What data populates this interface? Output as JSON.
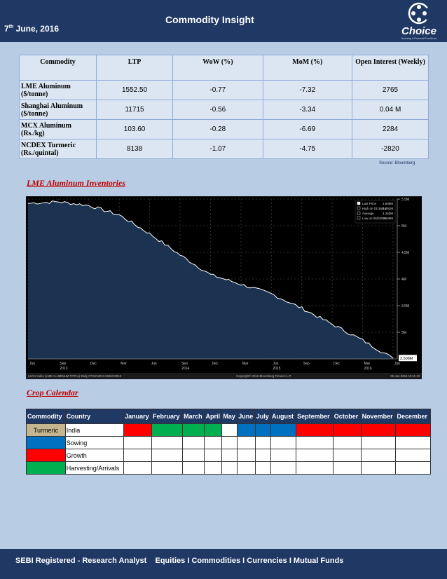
{
  "header": {
    "date_day": "7",
    "date_suffix": "th",
    "date_rest": " June, 2016",
    "title": "Commodity Insight",
    "logo_text": "Choice",
    "logo_tagline": "Nurturing & Financial Excellence"
  },
  "commodity_table": {
    "headers": [
      "Commodity",
      "LTP",
      "WoW (%)",
      "MoM (%)",
      "Open Interest (Weekly)"
    ],
    "rows": [
      {
        "name": "LME Aluminum ($/tonne)",
        "ltp": "1552.50",
        "wow": "-0.77",
        "mom": "-7.32",
        "oi": "2765"
      },
      {
        "name": "Shanghai Aluminum ($/tonne)",
        "ltp": "11715",
        "wow": "-0.56",
        "mom": "-3.34",
        "oi": "0.04 M"
      },
      {
        "name": "MCX Aluminum (Rs./kg)",
        "ltp": "103.60",
        "wow": "-0.28",
        "mom": "-6.69",
        "oi": "2284"
      },
      {
        "name": "NCDEX Turmeric (Rs./quintal)",
        "ltp": "8138",
        "wow": "-1.07",
        "mom": "-4.75",
        "oi": "-2820"
      }
    ],
    "source": "Source: Bloomberg"
  },
  "sections": {
    "inventories_title": "LME Aluminum Inventories",
    "crop_title": "Crop Calendar"
  },
  "chart_data": {
    "type": "area",
    "x": [
      "Jun 2013",
      "Sep 2013",
      "Dec 2013",
      "Mar 2014",
      "Jun 2014",
      "Sep 2014",
      "Dec 2014",
      "Mar 2015",
      "Jun 2015",
      "Sep 2015",
      "Dec 2015",
      "Mar 2016",
      "Jun 2016"
    ],
    "values": [
      5.42,
      5.45,
      5.38,
      5.2,
      4.85,
      4.45,
      4.08,
      3.9,
      3.72,
      3.45,
      3.15,
      2.85,
      2.51
    ],
    "ylim": [
      2.5,
      5.5
    ],
    "yticks": [
      "2.5M",
      "3M",
      "3.5M",
      "4M",
      "4.5M",
      "5M",
      "5.5M"
    ],
    "xticks": [
      "Jun",
      "Sep",
      "Dec",
      "Mar",
      "Jun",
      "Sep",
      "Dec",
      "Mar",
      "Jun",
      "Sep",
      "Dec",
      "Mar",
      "Jun"
    ],
    "xyears": [
      "2013",
      "2014",
      "2015",
      "2016"
    ],
    "legend": [
      {
        "label": "Last Price",
        "value": "2.508M"
      },
      {
        "label": "High on 01/16/14",
        "value": "5.492M"
      },
      {
        "label": "Average",
        "value": "4.260M"
      },
      {
        "label": "Low on 06/03/16",
        "value": "2.508M"
      }
    ],
    "last_label": "2.508M",
    "footer_left": "LSAH Index (LME ALUMINUM TOTAL) Daily 07JUN2013-06JUN2016",
    "footer_mid": "Copyright© 2016 Bloomberg Finance L.P.",
    "footer_right": "06-Jun-2016 15:11:10",
    "colors": {
      "area": "#1b3350",
      "line": "#ffffff",
      "bg": "#000000"
    }
  },
  "crop_calendar": {
    "headers": [
      "Commodity",
      "Country",
      "January",
      "February",
      "March",
      "April",
      "May",
      "June",
      "July",
      "August",
      "September",
      "October",
      "November",
      "December"
    ],
    "commodity": "Turmeric",
    "country": "India",
    "months_state": [
      "red",
      "green",
      "green",
      "green",
      "white",
      "blue",
      "blue",
      "blue",
      "red",
      "red",
      "red",
      "red"
    ],
    "legend": [
      {
        "label": "Sowing",
        "color": "#0070c0"
      },
      {
        "label": "Growth",
        "color": "#ff0000"
      },
      {
        "label": "Harvesting/Arrivals",
        "color": "#00b050"
      }
    ]
  },
  "footer": {
    "text": "SEBI Registered - Research Analyst    Equities I Commodities I Currencies I Mutual Funds"
  }
}
